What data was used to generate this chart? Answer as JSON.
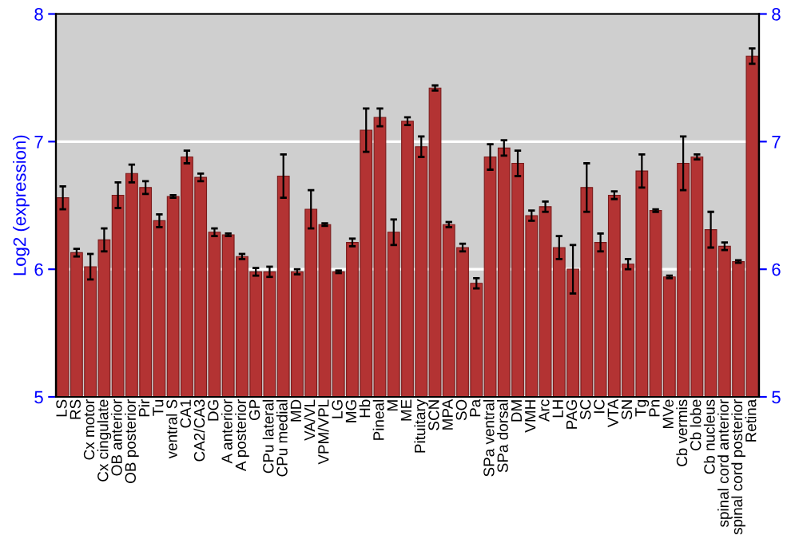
{
  "chart_data": {
    "type": "bar",
    "ylabel": "Log2 (expression)",
    "categories": [
      "LS",
      "RS",
      "Cx motor",
      "Cx cingulate",
      "OB anterior",
      "OB posterior",
      "Pir",
      "Tu",
      "ventral S",
      "CA1",
      "CA2/CA3",
      "DG",
      "A anterior",
      "A posterior",
      "GP",
      "CPu lateral",
      "CPu medial",
      "MD",
      "VA/VL",
      "VPM/VPL",
      "LG",
      "MG",
      "Hb",
      "Pineal",
      "M",
      "ME",
      "Pituitary",
      "SCN",
      "MPA",
      "SO",
      "Pa",
      "SPa ventral",
      "SPa dorsal",
      "DM",
      "VMH",
      "Arc",
      "LH",
      "PAG",
      "SC",
      "IC",
      "VTA",
      "SN",
      "Tg",
      "Pn",
      "MVe",
      "Cb vermis",
      "Cb lobe",
      "Cb nucleus",
      "spinal cord anterior",
      "spinal cord posterior",
      "Retina"
    ],
    "series": [
      {
        "color": "#b33333",
        "values": [
          6.56,
          6.13,
          6.02,
          6.23,
          6.58,
          6.75,
          6.64,
          6.38,
          6.57,
          6.88,
          6.72,
          6.29,
          6.27,
          6.1,
          5.98,
          5.98,
          6.73,
          5.98,
          6.47,
          6.35,
          5.98,
          6.21,
          7.09,
          7.19,
          6.29,
          7.16,
          6.96,
          7.42,
          6.35,
          6.17,
          5.89,
          6.88,
          6.95,
          6.83,
          6.42,
          6.49,
          6.17,
          6.0,
          6.64,
          6.21,
          6.58,
          6.04,
          6.77,
          6.46,
          5.94,
          6.83,
          6.88,
          6.31,
          6.18,
          6.06,
          7.67
        ],
        "errors": [
          0.09,
          0.03,
          0.1,
          0.09,
          0.1,
          0.07,
          0.05,
          0.05,
          0.01,
          0.05,
          0.03,
          0.03,
          0.01,
          0.02,
          0.03,
          0.04,
          0.17,
          0.02,
          0.15,
          0.01,
          0.01,
          0.03,
          0.17,
          0.07,
          0.1,
          0.03,
          0.08,
          0.02,
          0.02,
          0.03,
          0.04,
          0.1,
          0.06,
          0.1,
          0.04,
          0.04,
          0.09,
          0.19,
          0.19,
          0.07,
          0.03,
          0.04,
          0.13,
          0.01,
          0.01,
          0.21,
          0.02,
          0.14,
          0.03,
          0.01,
          0.06
        ]
      }
    ],
    "ylim": [
      5,
      8
    ],
    "yticks": [
      5,
      6,
      7,
      8
    ],
    "y2lim": [
      5,
      8
    ],
    "y2ticks": [
      5,
      6,
      7,
      8
    ],
    "grid": "y"
  }
}
